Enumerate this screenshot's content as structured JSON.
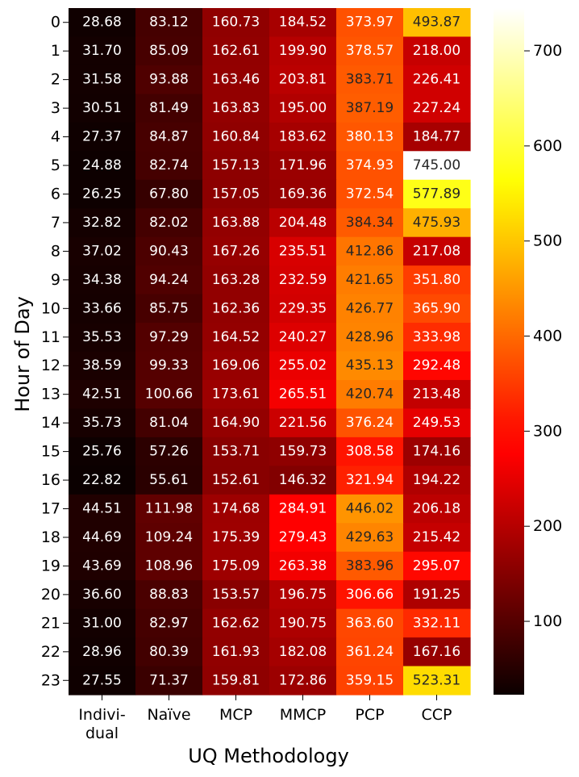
{
  "chart_data": {
    "type": "heatmap",
    "title": "",
    "xlabel": "UQ Methodology",
    "ylabel": "Hour of Day",
    "x_categories": [
      [
        "Indivi-",
        "dual"
      ],
      [
        "Naïve"
      ],
      [
        "MCP"
      ],
      [
        "MMCP"
      ],
      [
        "PCP"
      ],
      [
        "CCP"
      ]
    ],
    "y_categories": [
      "0",
      "1",
      "2",
      "3",
      "4",
      "5",
      "6",
      "7",
      "8",
      "9",
      "10",
      "11",
      "12",
      "13",
      "14",
      "15",
      "16",
      "17",
      "18",
      "19",
      "20",
      "21",
      "22",
      "23"
    ],
    "values": [
      [
        "28.68",
        "83.12",
        "160.73",
        "184.52",
        "373.97",
        "493.87"
      ],
      [
        "31.70",
        "85.09",
        "162.61",
        "199.90",
        "378.57",
        "218.00"
      ],
      [
        "31.58",
        "93.88",
        "163.46",
        "203.81",
        "383.71",
        "226.41"
      ],
      [
        "30.51",
        "81.49",
        "163.83",
        "195.00",
        "387.19",
        "227.24"
      ],
      [
        "27.37",
        "84.87",
        "160.84",
        "183.62",
        "380.13",
        "184.77"
      ],
      [
        "24.88",
        "82.74",
        "157.13",
        "171.96",
        "374.93",
        "745.00"
      ],
      [
        "26.25",
        "67.80",
        "157.05",
        "169.36",
        "372.54",
        "577.89"
      ],
      [
        "32.82",
        "82.02",
        "163.88",
        "204.48",
        "384.34",
        "475.93"
      ],
      [
        "37.02",
        "90.43",
        "167.26",
        "235.51",
        "412.86",
        "217.08"
      ],
      [
        "34.38",
        "94.24",
        "163.28",
        "232.59",
        "421.65",
        "351.80"
      ],
      [
        "33.66",
        "85.75",
        "162.36",
        "229.35",
        "426.77",
        "365.90"
      ],
      [
        "35.53",
        "97.29",
        "164.52",
        "240.27",
        "428.96",
        "333.98"
      ],
      [
        "38.59",
        "99.33",
        "169.06",
        "255.02",
        "435.13",
        "292.48"
      ],
      [
        "42.51",
        "100.66",
        "173.61",
        "265.51",
        "420.74",
        "213.48"
      ],
      [
        "35.73",
        "81.04",
        "164.90",
        "221.56",
        "376.24",
        "249.53"
      ],
      [
        "25.76",
        "57.26",
        "153.71",
        "159.73",
        "308.58",
        "174.16"
      ],
      [
        "22.82",
        "55.61",
        "152.61",
        "146.32",
        "321.94",
        "194.22"
      ],
      [
        "44.51",
        "111.98",
        "174.68",
        "284.91",
        "446.02",
        "206.18"
      ],
      [
        "44.69",
        "109.24",
        "175.39",
        "279.43",
        "429.63",
        "215.42"
      ],
      [
        "43.69",
        "108.96",
        "175.09",
        "263.38",
        "383.96",
        "295.07"
      ],
      [
        "36.60",
        "88.83",
        "153.57",
        "196.75",
        "306.66",
        "191.25"
      ],
      [
        "31.00",
        "82.97",
        "162.62",
        "190.75",
        "363.60",
        "332.11"
      ],
      [
        "28.96",
        "80.39",
        "161.93",
        "182.08",
        "361.24",
        "167.16"
      ],
      [
        "27.55",
        "71.37",
        "159.81",
        "172.86",
        "359.15",
        "523.31"
      ]
    ],
    "colorbar": {
      "colormap": "hot",
      "vmin": 22.82,
      "vmax": 745.0,
      "ticks": [
        "100",
        "200",
        "300",
        "400",
        "500",
        "600",
        "700"
      ]
    }
  }
}
